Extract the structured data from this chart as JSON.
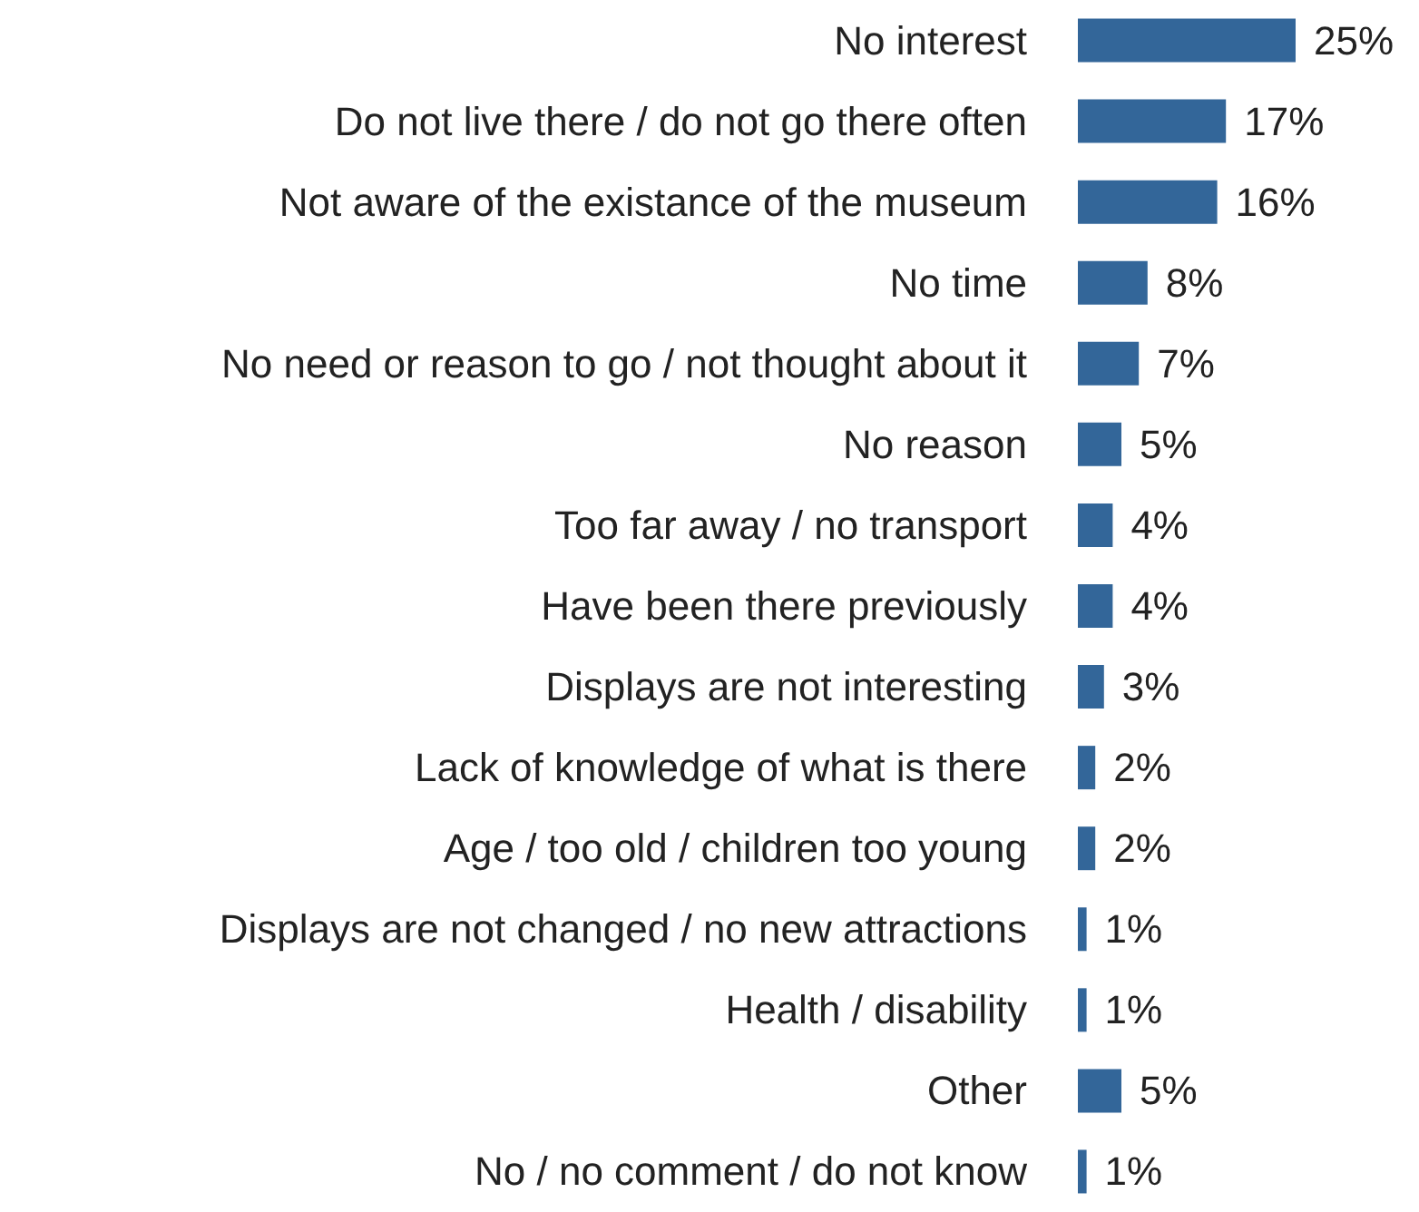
{
  "chart_data": {
    "type": "bar",
    "orientation": "horizontal",
    "color": "#336699",
    "categories": [
      "No interest",
      "Do not live there / do not go there often",
      "Not aware of the existance of the museum",
      "No time",
      "No need or reason to go / not thought about it",
      "No reason",
      "Too far away / no transport",
      "Have been there previously",
      "Displays are not interesting",
      "Lack of knowledge of what is there",
      "Age / too old / children too young",
      "Displays are not changed / no new attractions",
      "Health / disability",
      "Other",
      "No / no comment / do not know"
    ],
    "values": [
      25,
      17,
      16,
      8,
      7,
      5,
      4,
      4,
      3,
      2,
      2,
      1,
      1,
      5,
      1
    ],
    "value_labels": [
      "25%",
      "17%",
      "16%",
      "8%",
      "7%",
      "5%",
      "4%",
      "4%",
      "3%",
      "2%",
      "2%",
      "1%",
      "1%",
      "5%",
      "1%"
    ]
  }
}
